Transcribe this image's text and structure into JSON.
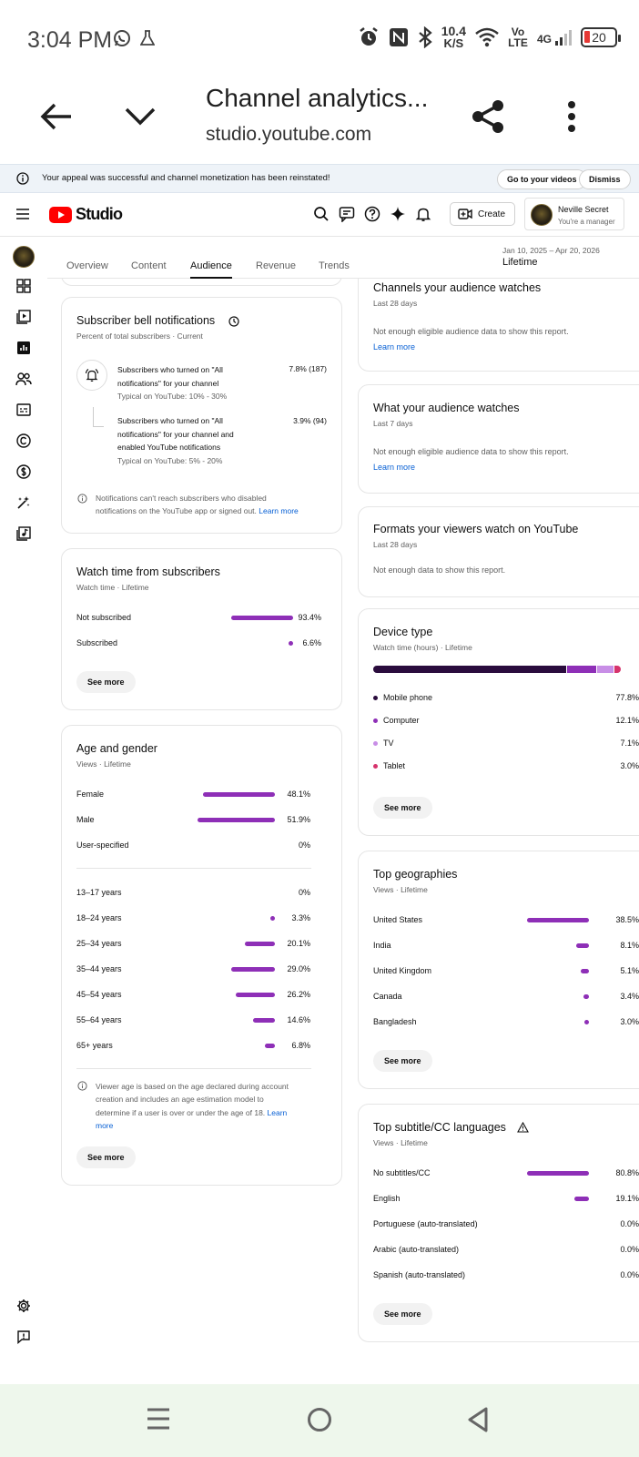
{
  "status_bar": {
    "time": "3:04 PM",
    "speed_value": "10.4",
    "speed_unit": "K/S",
    "volte": "Vo LTE",
    "network": "4G",
    "battery": "20"
  },
  "browser": {
    "title": "Channel analytics...",
    "url": "studio.youtube.com"
  },
  "banner": {
    "message": "Your appeal was successful and channel monetization has been reinstated!",
    "go_button": "Go to your videos",
    "dismiss_button": "Dismiss"
  },
  "header": {
    "brand": "Studio",
    "create_label": "Create",
    "account_name": "Neville Secret",
    "account_role": "You're a manager"
  },
  "tabs": [
    {
      "label": "Overview"
    },
    {
      "label": "Content"
    },
    {
      "label": "Audience"
    },
    {
      "label": "Revenue"
    },
    {
      "label": "Trends"
    }
  ],
  "date_range": {
    "range": "Jan 10, 2025 – Apr 20, 2026",
    "label": "Lifetime"
  },
  "bell_card": {
    "title": "Subscriber bell notifications",
    "subtitle": "Percent of total subscribers · Current",
    "rows": [
      {
        "l1": "Subscribers who turned on \"All",
        "l2": "notifications\" for your channel",
        "typical": "Typical on YouTube: 10% - 30%",
        "value": "7.8% (187)"
      },
      {
        "l1": "Subscribers who turned on \"All",
        "l2": "notifications\" for your channel and",
        "l3": "enabled YouTube notifications",
        "typical": "Typical on YouTube: 5% - 20%",
        "value": "3.9% (94)"
      }
    ],
    "note_l1": "Notifications can't reach subscribers who disabled",
    "note_l2": "notifications on the YouTube app or signed out.",
    "note_link": "Learn more"
  },
  "watch_time_card": {
    "title": "Watch time from subscribers",
    "subtitle": "Watch time · Lifetime",
    "rows": [
      {
        "label": "Not subscribed",
        "value": "93.4%",
        "pct": 93.4
      },
      {
        "label": "Subscribed",
        "value": "6.6%",
        "pct": 6.6
      }
    ],
    "see_more": "See more"
  },
  "age_gender_card": {
    "title": "Age and gender",
    "subtitle": "Views · Lifetime",
    "gender": [
      {
        "label": "Female",
        "value": "48.1%",
        "pct": 48.1
      },
      {
        "label": "Male",
        "value": "51.9%",
        "pct": 51.9
      },
      {
        "label": "User-specified",
        "value": "0%",
        "pct": 0
      }
    ],
    "ages": [
      {
        "label": "13–17 years",
        "value": "0%",
        "pct": 0
      },
      {
        "label": "18–24 years",
        "value": "3.3%",
        "pct": 3.3
      },
      {
        "label": "25–34 years",
        "value": "20.1%",
        "pct": 20.1
      },
      {
        "label": "35–44 years",
        "value": "29.0%",
        "pct": 29.0
      },
      {
        "label": "45–54 years",
        "value": "26.2%",
        "pct": 26.2
      },
      {
        "label": "55–64 years",
        "value": "14.6%",
        "pct": 14.6
      },
      {
        "label": "65+ years",
        "value": "6.8%",
        "pct": 6.8
      }
    ],
    "note_l1": "Viewer age is based on the age declared during account",
    "note_l2": "creation and includes an age estimation model to",
    "note_l3": "determine if a user is over or under the age of 18.",
    "note_link1": "Learn",
    "note_link2": "more",
    "see_more": "See more"
  },
  "channels_card": {
    "title": "Channels your audience watches",
    "subtitle": "Last 28 days",
    "message": "Not enough eligible audience data to show this report.",
    "link": "Learn more"
  },
  "what_watch_card": {
    "title": "What your audience watches",
    "subtitle": "Last 7 days",
    "message": "Not enough eligible audience data to show this report.",
    "link": "Learn more"
  },
  "formats_card": {
    "title": "Formats your viewers watch on YouTube",
    "subtitle": "Last 28 days",
    "message": "Not enough data to show this report."
  },
  "device_card": {
    "title": "Device type",
    "subtitle": "Watch time (hours) · Lifetime",
    "rows": [
      {
        "label": "Mobile phone",
        "value": "77.8%",
        "pct": 77.8,
        "color": "#2a0c3d"
      },
      {
        "label": "Computer",
        "value": "12.1%",
        "pct": 12.1,
        "color": "#8e2fb7"
      },
      {
        "label": "TV",
        "value": "7.1%",
        "pct": 7.1,
        "color": "#c88ee6"
      },
      {
        "label": "Tablet",
        "value": "3.0%",
        "pct": 3.0,
        "color": "#d6336c"
      }
    ],
    "see_more": "See more"
  },
  "geo_card": {
    "title": "Top geographies",
    "subtitle": "Views · Lifetime",
    "rows": [
      {
        "label": "United States",
        "value": "38.5%",
        "pct": 38.5
      },
      {
        "label": "India",
        "value": "8.1%",
        "pct": 8.1
      },
      {
        "label": "United Kingdom",
        "value": "5.1%",
        "pct": 5.1
      },
      {
        "label": "Canada",
        "value": "3.4%",
        "pct": 3.4
      },
      {
        "label": "Bangladesh",
        "value": "3.0%",
        "pct": 3.0
      }
    ],
    "see_more": "See more"
  },
  "subtitle_card": {
    "title": "Top subtitle/CC languages",
    "subtitle": "Views · Lifetime",
    "rows": [
      {
        "label": "No subtitles/CC",
        "value": "80.8%",
        "pct": 80.8
      },
      {
        "label": "English",
        "value": "19.1%",
        "pct": 19.1
      },
      {
        "label": "Portuguese (auto-translated)",
        "value": "0.0%",
        "pct": 0
      },
      {
        "label": "Arabic (auto-translated)",
        "value": "0.0%",
        "pct": 0
      },
      {
        "label": "Spanish (auto-translated)",
        "value": "0.0%",
        "pct": 0
      }
    ],
    "see_more": "See more"
  },
  "colors": {
    "accent": "#8e2fb7",
    "brand_red": "#ff0000",
    "link": "#065fd4"
  }
}
